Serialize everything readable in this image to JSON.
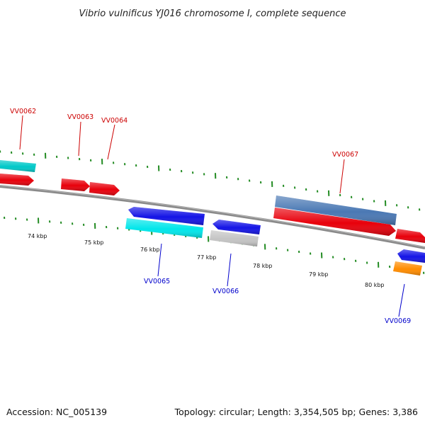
{
  "title": "Vibrio vulnificus YJ016 chromosome I, complete sequence",
  "accession_text": "Accession: NC_005139",
  "summary_text": "Topology: circular; Length: 3,354,505 bp; Genes: 3,386",
  "colors": {
    "backbone": "#7a7a7a",
    "tick": "#228b22",
    "forward_label": "#cc0000",
    "reverse_label": "#0000cc"
  },
  "kbp_ticks": [
    "74 kbp",
    "75 kbp",
    "76 kbp",
    "77 kbp",
    "78 kbp",
    "79 kbp",
    "80 kbp"
  ],
  "genes": [
    {
      "id": "g-fwd-1",
      "strand": "forward",
      "color": "#e8000b"
    },
    {
      "id": "VV0063",
      "label": "VV0063",
      "strand": "forward",
      "color": "#e8000b"
    },
    {
      "id": "VV0064",
      "label": "VV0064",
      "strand": "forward",
      "color": "#e8000b"
    },
    {
      "id": "VV0067",
      "label": "VV0067",
      "strand": "forward",
      "color": "#e8000b"
    },
    {
      "id": "g-fwd-2",
      "strand": "forward",
      "color": "#e8000b"
    },
    {
      "id": "VV0062",
      "label": "VV0062",
      "strand": "forward",
      "color": "#00c8c8"
    },
    {
      "id": "g-fwd-3",
      "strand": "forward",
      "color": "#4a78b4"
    },
    {
      "id": "g-rev-1",
      "strand": "reverse",
      "color": "#1414e6"
    },
    {
      "id": "VV0065",
      "label": "VV0065",
      "strand": "reverse",
      "color": "#00e6ea"
    },
    {
      "id": "g-rev-2",
      "strand": "reverse",
      "color": "#1414e6"
    },
    {
      "id": "VV0066",
      "label": "VV0066",
      "strand": "reverse",
      "color": "#c4c4c4"
    },
    {
      "id": "g-rev-3",
      "strand": "reverse",
      "color": "#1414e6"
    },
    {
      "id": "VV0069",
      "label": "VV0069",
      "strand": "reverse",
      "color": "#ff8c00"
    }
  ]
}
